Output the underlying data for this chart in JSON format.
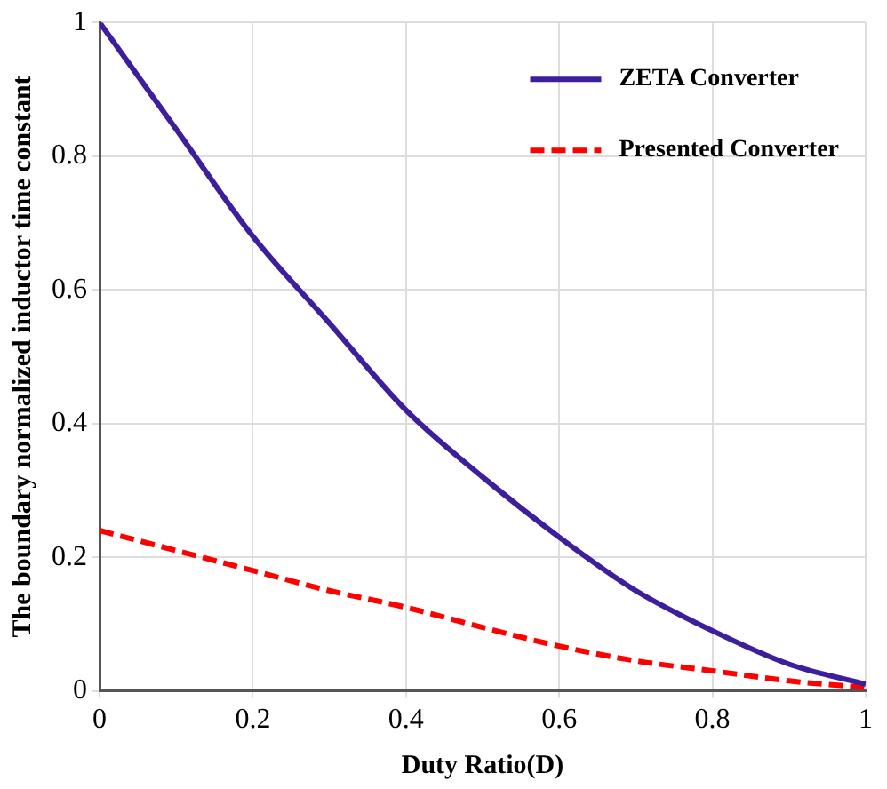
{
  "chart_data": {
    "type": "line",
    "xlabel": "Duty Ratio(D)",
    "ylabel": "The boundary normalized inductor time constant",
    "x": [
      0,
      0.1,
      0.2,
      0.3,
      0.4,
      0.5,
      0.6,
      0.7,
      0.8,
      0.9,
      1
    ],
    "series": [
      {
        "name": "ZETA Converter",
        "color": "#3d1f9e",
        "line_style": "solid",
        "values": [
          1,
          0.84,
          0.68,
          0.55,
          0.42,
          0.32,
          0.23,
          0.15,
          0.09,
          0.04,
          0.01
        ]
      },
      {
        "name": "Presented Converter",
        "color": "#ff0000",
        "line_style": "dashed",
        "values": [
          0.24,
          0.21,
          0.18,
          0.15,
          0.125,
          0.095,
          0.067,
          0.045,
          0.03,
          0.015,
          0.005
        ]
      }
    ],
    "xlim": [
      0,
      1
    ],
    "ylim": [
      0,
      1
    ],
    "xticks": [
      0,
      0.2,
      0.4,
      0.6,
      0.8,
      1
    ],
    "yticks": [
      0,
      0.2,
      0.4,
      0.6,
      0.8,
      1
    ],
    "grid": true,
    "legend": "top right",
    "marker": "none"
  }
}
